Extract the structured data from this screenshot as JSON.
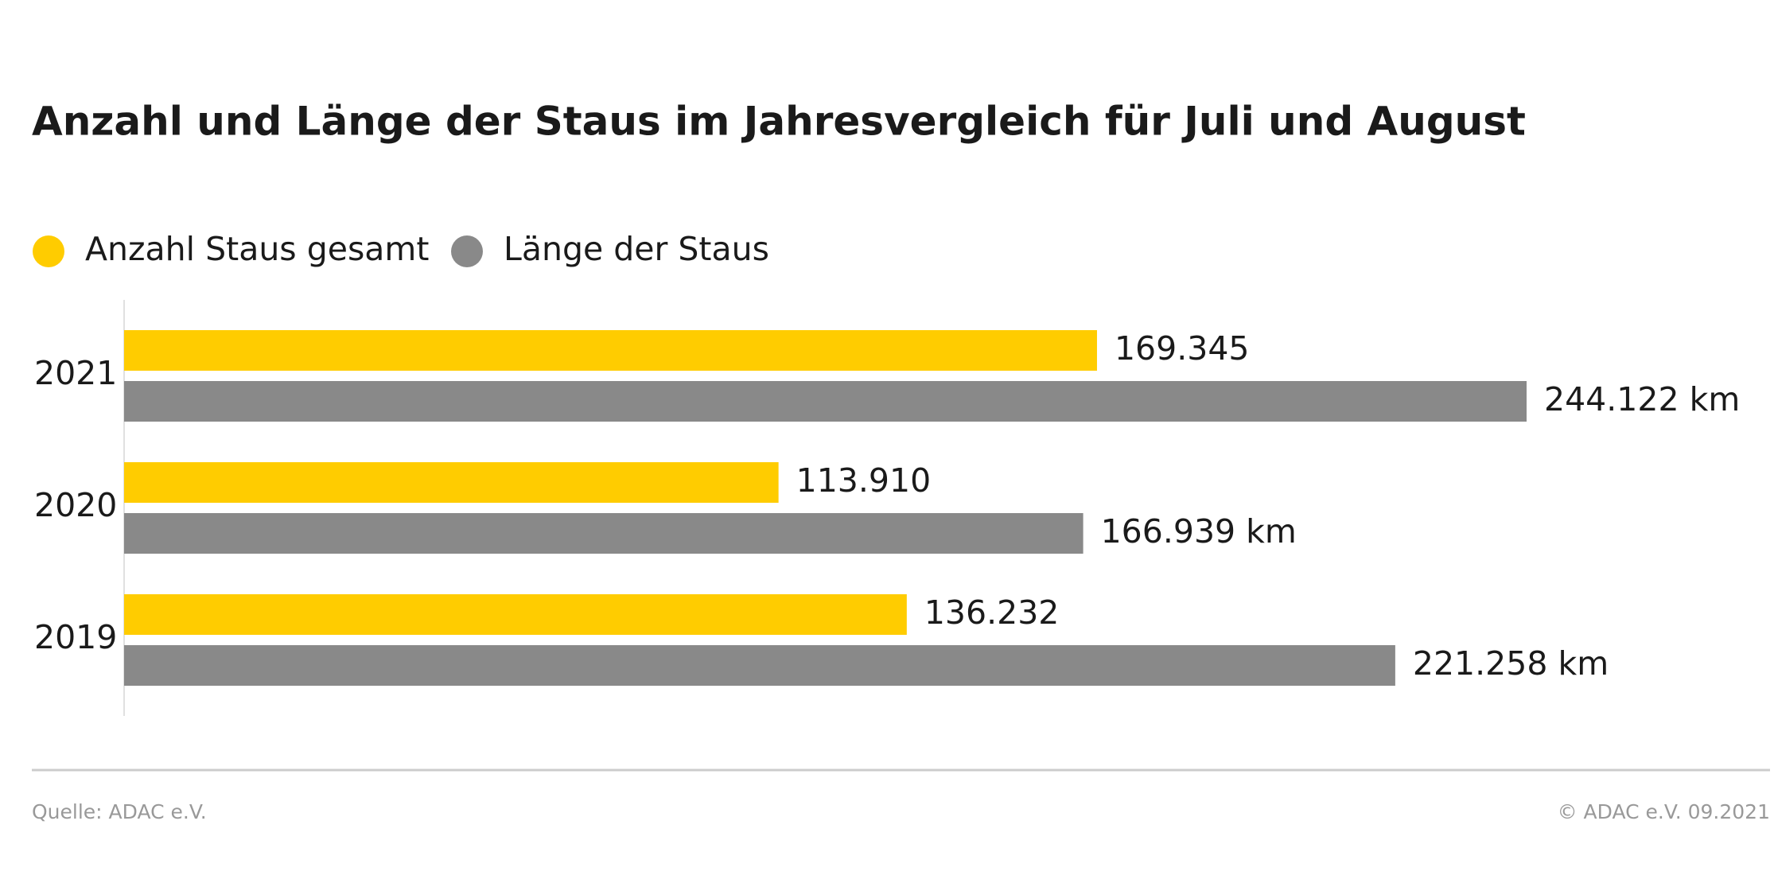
{
  "chart_data": {
    "type": "hbar",
    "title": "Anzahl und Länge der Staus im Jahresvergleich für Juli und August",
    "categories": [
      "2021",
      "2020",
      "2019"
    ],
    "series": [
      {
        "name": "Anzahl Staus gesamt",
        "color": "#ffcc00",
        "values": [
          169345,
          113910,
          136232
        ],
        "value_labels": [
          "169.345",
          "113.910",
          "136.232"
        ]
      },
      {
        "name": "Länge der Staus",
        "color": "#898989",
        "values": [
          244122,
          166939,
          221258
        ],
        "value_labels": [
          "244.122 km",
          "166.939 km",
          "221.258 km"
        ]
      }
    ],
    "legend": "top-left",
    "source": "Quelle: ADAC e.V.",
    "copyright": "© ADAC e.V. 09.2021"
  }
}
